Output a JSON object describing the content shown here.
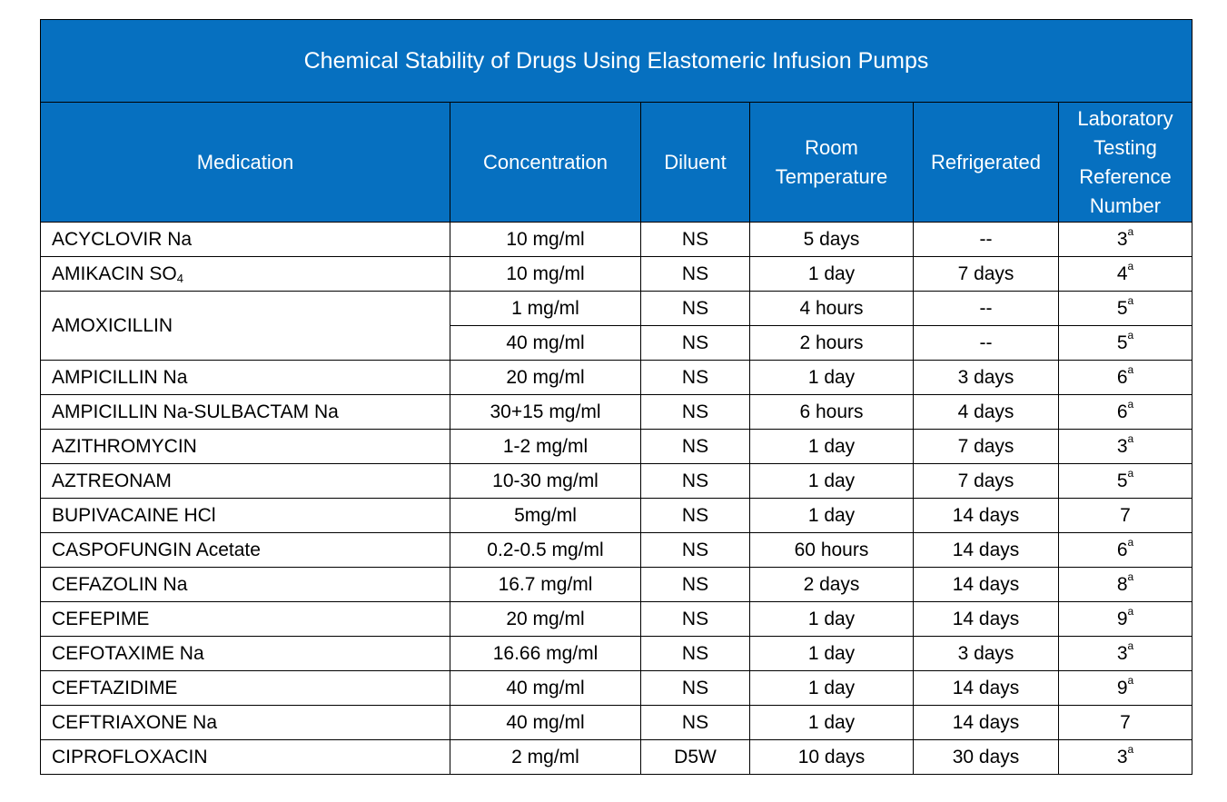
{
  "title": "Chemical Stability of Drugs Using Elastomeric Infusion Pumps",
  "headers": {
    "medication": "Medication",
    "concentration": "Concentration",
    "diluent": "Diluent",
    "room_temperature": "Room Temperature",
    "refrigerated": "Refrigerated",
    "reference": "Laboratory Testing Reference Number"
  },
  "rows": [
    {
      "medication": "ACYCLOVIR Na",
      "concentration": "10 mg/ml",
      "diluent": "NS",
      "room": "5 days",
      "refrigerated": "--",
      "ref": "3",
      "sup": "a"
    },
    {
      "medication": "AMIKACIN SO",
      "medication_sub": "4",
      "concentration": "10 mg/ml",
      "diluent": "NS",
      "room": "1 day",
      "refrigerated": "7 days",
      "ref": "4",
      "sup": "a"
    },
    {
      "medication": "AMOXICILLIN",
      "concentration": "1 mg/ml",
      "diluent": "NS",
      "room": "4 hours",
      "refrigerated": "--",
      "ref": "5",
      "sup": "a"
    },
    {
      "medication": "",
      "concentration": "40 mg/ml",
      "diluent": "NS",
      "room": "2 hours",
      "refrigerated": "--",
      "ref": "5",
      "sup": "a"
    },
    {
      "medication": "AMPICILLIN Na",
      "concentration": "20 mg/ml",
      "diluent": "NS",
      "room": "1 day",
      "refrigerated": "3 days",
      "ref": "6",
      "sup": "a"
    },
    {
      "medication": "AMPICILLIN Na-SULBACTAM Na",
      "concentration": "30+15 mg/ml",
      "diluent": "NS",
      "room": "6 hours",
      "refrigerated": "4 days",
      "ref": "6",
      "sup": "a"
    },
    {
      "medication": "AZITHROMYCIN",
      "concentration": "1-2 mg/ml",
      "diluent": "NS",
      "room": "1 day",
      "refrigerated": "7 days",
      "ref": "3",
      "sup": "a"
    },
    {
      "medication": "AZTREONAM",
      "concentration": "10-30 mg/ml",
      "diluent": "NS",
      "room": "1 day",
      "refrigerated": "7 days",
      "ref": "5",
      "sup": "a"
    },
    {
      "medication": "BUPIVACAINE HCl",
      "concentration": "5mg/ml",
      "diluent": "NS",
      "room": "1 day",
      "refrigerated": "14 days",
      "ref": "7",
      "sup": ""
    },
    {
      "medication": "CASPOFUNGIN Acetate",
      "concentration": "0.2-0.5 mg/ml",
      "diluent": "NS",
      "room": "60  hours",
      "refrigerated": "14 days",
      "ref": "6",
      "sup": "a"
    },
    {
      "medication": "CEFAZOLIN Na",
      "concentration": "16.7 mg/ml",
      "diluent": "NS",
      "room": "2 days",
      "refrigerated": "14 days",
      "ref": "8",
      "sup": "a"
    },
    {
      "medication": "CEFEPIME",
      "concentration": "20 mg/ml",
      "diluent": "NS",
      "room": "1 day",
      "refrigerated": "14 days",
      "ref": "9",
      "sup": "a"
    },
    {
      "medication": "CEFOTAXIME Na",
      "concentration": "16.66 mg/ml",
      "diluent": "NS",
      "room": "1 day",
      "refrigerated": "3 days",
      "ref": "3",
      "sup": "a"
    },
    {
      "medication": "CEFTAZIDIME",
      "concentration": "40 mg/ml",
      "diluent": "NS",
      "room": "1 day",
      "refrigerated": "14 days",
      "ref": "9",
      "sup": "a"
    },
    {
      "medication": "CEFTRIAXONE Na",
      "concentration": "40 mg/ml",
      "diluent": "NS",
      "room": "1 day",
      "refrigerated": "14 days",
      "ref": "7",
      "sup": ""
    },
    {
      "medication": "CIPROFLOXACIN",
      "concentration": "2 mg/ml",
      "diluent": "D5W",
      "room": "10 days",
      "refrigerated": "30 days",
      "ref": "3",
      "sup": "a"
    }
  ]
}
